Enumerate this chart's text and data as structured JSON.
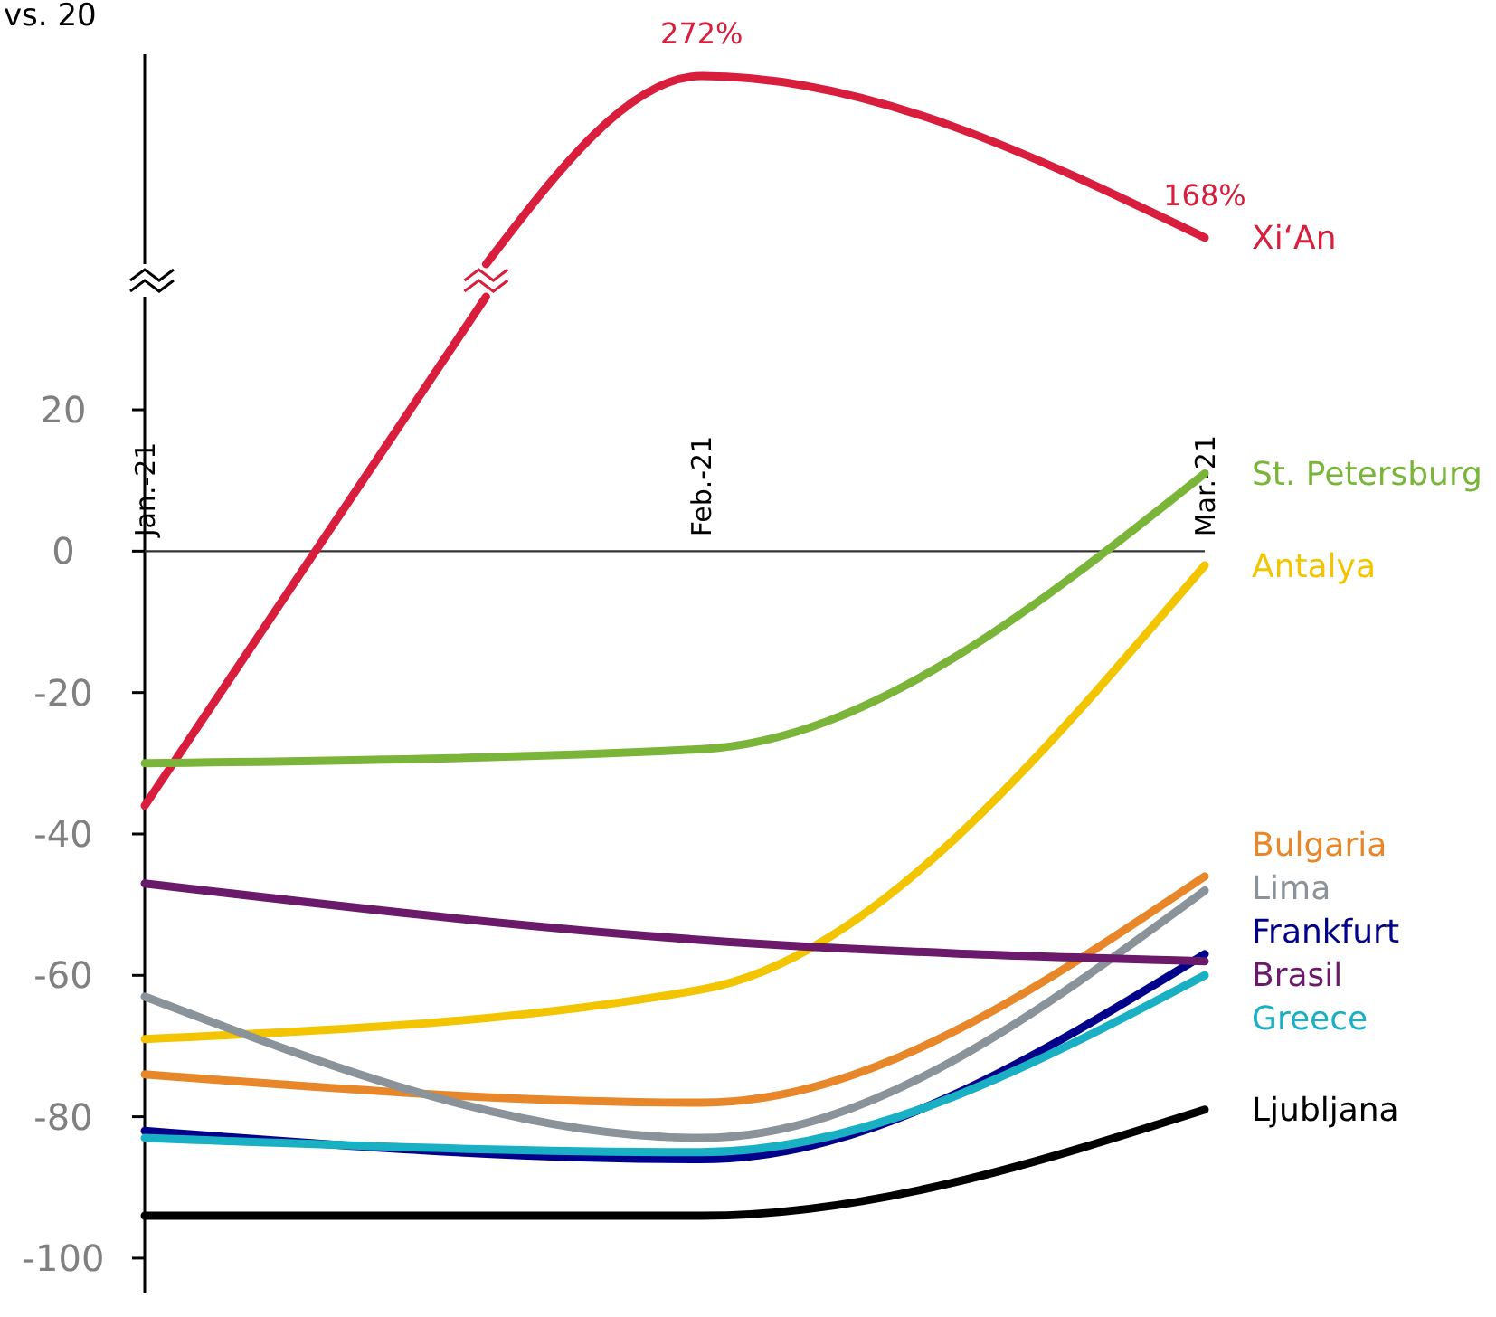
{
  "chart_data": [
    {
      "type": "line",
      "ylabel": "vs. 20",
      "xlim": [
        "2021-01-01",
        "2021-03-01"
      ],
      "marker": "none",
      "line_style": "solid",
      "series": [
        {
          "name": "Xi‘An",
          "color": "#d81e3c",
          "x": [
            "2021-01-20",
            "2021-02-01",
            "2021-03-01"
          ],
          "values": [
            151,
            272,
            168
          ],
          "value_labels": [
            null,
            "272%",
            "168%"
          ]
        }
      ]
    },
    {
      "type": "line",
      "x": [
        "2021-01-01",
        "2021-02-01",
        "2021-03-01"
      ],
      "xlim": [
        "2021-01-01",
        "2021-03-01"
      ],
      "xticks": [
        {
          "value": "2021-01-01",
          "label": "Jan.-21"
        },
        {
          "value": "2021-02-01",
          "label": "Feb.-21"
        },
        {
          "value": "2021-03-01",
          "label": "Mar.-21"
        }
      ],
      "ylim": [
        -105,
        36
      ],
      "yticks": [
        -100,
        -80,
        -60,
        -40,
        -20,
        0,
        20
      ],
      "marker": "none",
      "line_style": "solid",
      "series": [
        {
          "color": "#d81e3c",
          "x": [
            "2021-01-01",
            "2021-01-20"
          ],
          "values": [
            -36,
            36
          ]
        },
        {
          "name": "St. Petersburg",
          "color": "#7ab53a",
          "values": [
            -30,
            -28,
            11
          ]
        },
        {
          "name": "Antalya",
          "color": "#f2c500",
          "values": [
            -69,
            -62,
            -2
          ]
        },
        {
          "name": "Bulgaria",
          "color": "#e8872a",
          "values": [
            -74,
            -78,
            -46
          ]
        },
        {
          "name": "Lima",
          "color": "#8a9399",
          "values": [
            -63,
            -83,
            -48
          ]
        },
        {
          "name": "Frankfurt",
          "color": "#00008b",
          "values": [
            -82,
            -86,
            -57
          ]
        },
        {
          "name": "Brasil",
          "color": "#6b1a6b",
          "values": [
            -47,
            -55,
            -58
          ]
        },
        {
          "name": "Greece",
          "color": "#1ab0c4",
          "values": [
            -83,
            -85,
            -60
          ]
        },
        {
          "name": "Ljubljana",
          "color": "#000000",
          "values": [
            -94,
            -94,
            -79
          ]
        }
      ]
    }
  ]
}
